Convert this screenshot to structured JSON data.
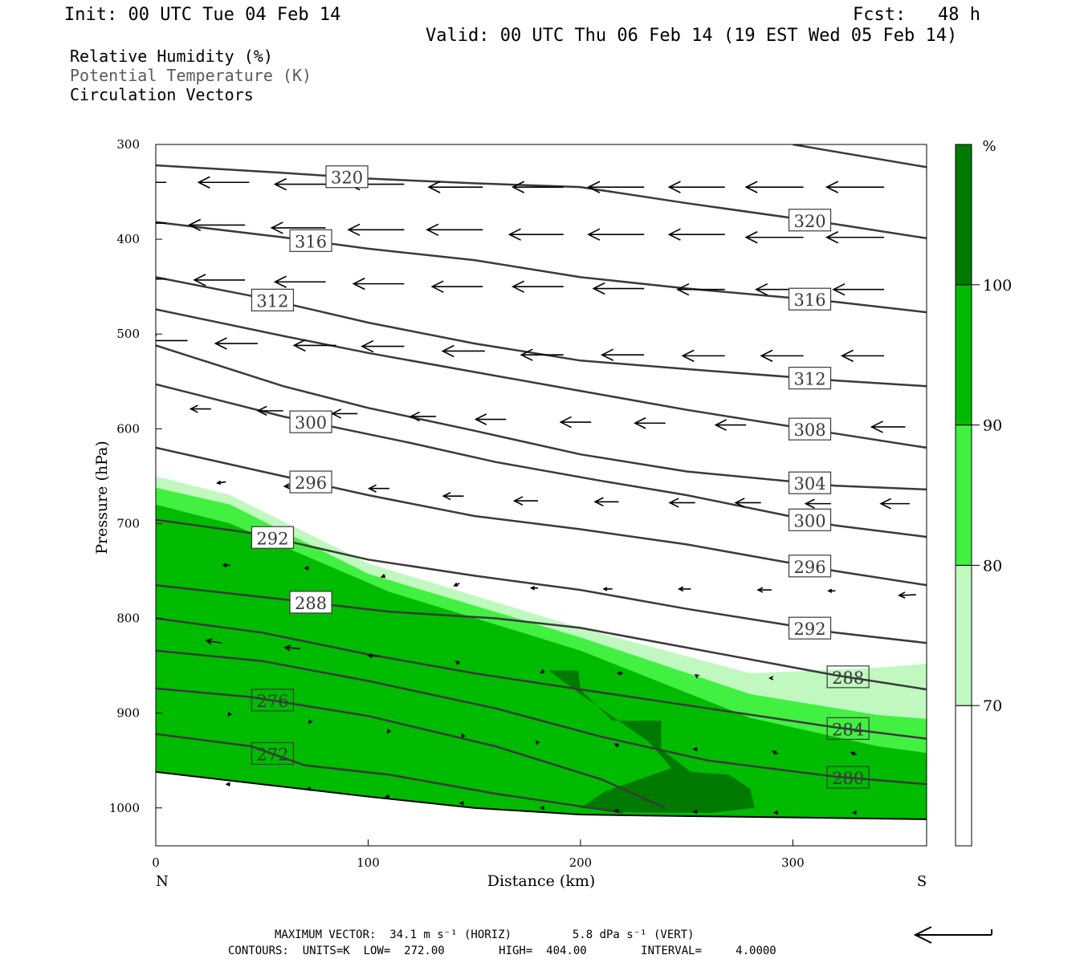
{
  "header": {
    "init": "Init: 00 UTC Tue 04 Feb 14",
    "fcst": "Fcst:   48 h",
    "valid": "Valid: 00 UTC Thu 06 Feb 14 (19 EST Wed 05 Feb 14)"
  },
  "fields": [
    {
      "label": "Relative Humidity (%)"
    },
    {
      "label": "Potential Temperature (K)"
    },
    {
      "label": "Circulation Vectors"
    }
  ],
  "colorbar": {
    "unit": "%",
    "levels": [
      70,
      80,
      90,
      100
    ],
    "colors": [
      "#ffffff",
      "#c0f8c0",
      "#42f042",
      "#00bb00",
      "#007a00"
    ]
  },
  "footer": {
    "max_vector": "MAXIMUM VECTOR:  34.1 m s⁻¹ (HORIZ)         5.8 dPa s⁻¹ (VERT)",
    "contours": "CONTOURS:  UNITS=K  LOW=  272.00        HIGH=  404.00        INTERVAL=     4.0000"
  },
  "chart_data": {
    "type": "cross-section",
    "xlabel": "Distance (km)",
    "ylabel": "Pressure (hPa)",
    "xlim": [
      0,
      363
    ],
    "ylim": [
      1040,
      300
    ],
    "x_ticks": [
      0,
      100,
      200,
      300
    ],
    "y_ticks": [
      300,
      400,
      500,
      600,
      700,
      800,
      900,
      1000
    ],
    "x_end_labels": {
      "left": "N",
      "right": "S"
    },
    "rh_fill": [
      {
        "level": 70,
        "color": "#c0f8c0",
        "top": [
          [
            0,
            650
          ],
          [
            35,
            670
          ],
          [
            100,
            742
          ],
          [
            200,
            810
          ],
          [
            280,
            858
          ],
          [
            340,
            852
          ],
          [
            363,
            848
          ]
        ]
      },
      {
        "level": 80,
        "color": "#42f042",
        "top": [
          [
            0,
            662
          ],
          [
            35,
            680
          ],
          [
            100,
            753
          ],
          [
            200,
            820
          ],
          [
            280,
            880
          ],
          [
            340,
            902
          ],
          [
            363,
            906
          ]
        ]
      },
      {
        "level": 90,
        "color": "#00bb00",
        "top": [
          [
            0,
            680
          ],
          [
            35,
            700
          ],
          [
            110,
            772
          ],
          [
            200,
            834
          ],
          [
            280,
            905
          ],
          [
            340,
            935
          ],
          [
            363,
            942
          ]
        ]
      }
    ],
    "rh_core_100": [
      [
        185,
        855
      ],
      [
        199,
        855
      ],
      [
        200,
        875
      ],
      [
        215,
        908
      ],
      [
        238,
        908
      ],
      [
        238,
        938
      ],
      [
        252,
        962
      ],
      [
        270,
        965
      ],
      [
        280,
        980
      ],
      [
        282,
        1000
      ],
      [
        262,
        1005
      ],
      [
        225,
        1005
      ],
      [
        200,
        1000
      ],
      [
        212,
        982
      ],
      [
        243,
        958
      ],
      [
        232,
        930
      ],
      [
        200,
        880
      ]
    ],
    "terrain": [
      [
        0,
        962
      ],
      [
        50,
        975
      ],
      [
        100,
        988
      ],
      [
        150,
        1000
      ],
      [
        200,
        1007
      ],
      [
        230,
        1008
      ],
      [
        300,
        1010
      ],
      [
        363,
        1012
      ]
    ],
    "theta_contours": [
      {
        "value": 272,
        "points": [
          [
            0,
            922
          ],
          [
            45,
            935
          ],
          [
            70,
            955
          ],
          [
            110,
            965
          ],
          [
            160,
            985
          ],
          [
            220,
            1005
          ]
        ]
      },
      {
        "value": 276,
        "points": [
          [
            0,
            874
          ],
          [
            45,
            883
          ],
          [
            100,
            903
          ],
          [
            160,
            935
          ],
          [
            210,
            970
          ],
          [
            240,
            1000
          ]
        ]
      },
      {
        "value": 280,
        "points": [
          [
            0,
            834
          ],
          [
            50,
            845
          ],
          [
            100,
            866
          ],
          [
            160,
            895
          ],
          [
            210,
            925
          ],
          [
            260,
            950
          ],
          [
            320,
            967
          ],
          [
            363,
            975
          ]
        ]
      },
      {
        "value": 284,
        "points": [
          [
            0,
            800
          ],
          [
            50,
            815
          ],
          [
            100,
            838
          ],
          [
            150,
            858
          ],
          [
            200,
            875
          ],
          [
            260,
            895
          ],
          [
            320,
            915
          ],
          [
            363,
            927
          ]
        ]
      },
      {
        "value": 288,
        "points": [
          [
            0,
            765
          ],
          [
            60,
            780
          ],
          [
            110,
            793
          ],
          [
            160,
            800
          ],
          [
            200,
            810
          ],
          [
            260,
            835
          ],
          [
            320,
            860
          ],
          [
            363,
            875
          ]
        ]
      },
      {
        "value": 292,
        "points": [
          [
            0,
            696
          ],
          [
            45,
            710
          ],
          [
            100,
            738
          ],
          [
            150,
            755
          ],
          [
            200,
            770
          ],
          [
            250,
            790
          ],
          [
            320,
            815
          ],
          [
            363,
            826
          ]
        ]
      },
      {
        "value": 296,
        "points": [
          [
            0,
            620
          ],
          [
            50,
            645
          ],
          [
            100,
            670
          ],
          [
            150,
            692
          ],
          [
            200,
            706
          ],
          [
            250,
            722
          ],
          [
            320,
            750
          ],
          [
            363,
            765
          ]
        ]
      },
      {
        "value": 300,
        "points": [
          [
            0,
            553
          ],
          [
            60,
            587
          ],
          [
            120,
            615
          ],
          [
            160,
            635
          ],
          [
            210,
            655
          ],
          [
            250,
            670
          ],
          [
            320,
            702
          ],
          [
            363,
            714
          ]
        ]
      },
      {
        "value": 304,
        "points": [
          [
            0,
            512
          ],
          [
            60,
            555
          ],
          [
            100,
            578
          ],
          [
            150,
            602
          ],
          [
            200,
            627
          ],
          [
            250,
            645
          ],
          [
            320,
            660
          ],
          [
            363,
            664
          ]
        ]
      },
      {
        "value": 308,
        "points": [
          [
            0,
            474
          ],
          [
            60,
            502
          ],
          [
            100,
            520
          ],
          [
            150,
            540
          ],
          [
            200,
            560
          ],
          [
            250,
            580
          ],
          [
            320,
            605
          ],
          [
            363,
            620
          ]
        ]
      },
      {
        "value": 312,
        "points": [
          [
            0,
            440
          ],
          [
            50,
            462
          ],
          [
            100,
            488
          ],
          [
            150,
            510
          ],
          [
            200,
            528
          ],
          [
            250,
            537
          ],
          [
            320,
            549
          ],
          [
            363,
            555
          ]
        ]
      },
      {
        "value": 316,
        "points": [
          [
            0,
            382
          ],
          [
            60,
            398
          ],
          [
            100,
            410
          ],
          [
            150,
            422
          ],
          [
            200,
            440
          ],
          [
            250,
            452
          ],
          [
            320,
            466
          ],
          [
            363,
            477
          ]
        ]
      },
      {
        "value": 320,
        "points": [
          [
            0,
            322
          ],
          [
            60,
            330
          ],
          [
            100,
            336
          ],
          [
            150,
            341
          ],
          [
            200,
            345
          ],
          [
            250,
            362
          ],
          [
            320,
            384
          ],
          [
            363,
            399
          ]
        ]
      },
      {
        "value": 324,
        "points": [
          [
            300,
            300
          ],
          [
            363,
            324
          ]
        ]
      }
    ],
    "vectors": [
      {
        "x": 5,
        "p": 340,
        "u": -33,
        "w": 0
      },
      {
        "x": 44,
        "p": 340,
        "u": -30,
        "w": 0
      },
      {
        "x": 80,
        "p": 342,
        "u": -30,
        "w": 0
      },
      {
        "x": 117,
        "p": 342,
        "u": -33,
        "w": 0
      },
      {
        "x": 154,
        "p": 345,
        "u": -32,
        "w": 0
      },
      {
        "x": 192,
        "p": 345,
        "u": -30,
        "w": 0
      },
      {
        "x": 230,
        "p": 345,
        "u": -33,
        "w": 0
      },
      {
        "x": 268,
        "p": 345,
        "u": -33,
        "w": 0
      },
      {
        "x": 305,
        "p": 345,
        "u": -34,
        "w": 0
      },
      {
        "x": 343,
        "p": 345,
        "u": -34,
        "w": 0
      },
      {
        "x": 5,
        "p": 383,
        "u": -32,
        "w": 0
      },
      {
        "x": 42,
        "p": 385,
        "u": -33,
        "w": 0
      },
      {
        "x": 80,
        "p": 388,
        "u": -32,
        "w": 0
      },
      {
        "x": 117,
        "p": 390,
        "u": -33,
        "w": 0
      },
      {
        "x": 154,
        "p": 390,
        "u": -33,
        "w": 0
      },
      {
        "x": 192,
        "p": 395,
        "u": -32,
        "w": 0
      },
      {
        "x": 230,
        "p": 395,
        "u": -33,
        "w": 0
      },
      {
        "x": 268,
        "p": 395,
        "u": -33,
        "w": 0
      },
      {
        "x": 305,
        "p": 398,
        "u": -34,
        "w": 0
      },
      {
        "x": 343,
        "p": 398,
        "u": -34,
        "w": 0
      },
      {
        "x": 5,
        "p": 442,
        "u": -30,
        "w": 0
      },
      {
        "x": 42,
        "p": 443,
        "u": -30,
        "w": 0
      },
      {
        "x": 80,
        "p": 445,
        "u": -30,
        "w": 0
      },
      {
        "x": 117,
        "p": 447,
        "u": -30,
        "w": 0
      },
      {
        "x": 154,
        "p": 450,
        "u": -30,
        "w": 0
      },
      {
        "x": 192,
        "p": 450,
        "u": -30,
        "w": 0
      },
      {
        "x": 230,
        "p": 452,
        "u": -30,
        "w": 0
      },
      {
        "x": 268,
        "p": 453,
        "u": -28,
        "w": 0
      },
      {
        "x": 305,
        "p": 453,
        "u": -28,
        "w": 0
      },
      {
        "x": 343,
        "p": 453,
        "u": -30,
        "w": 0
      },
      {
        "x": 15,
        "p": 507,
        "u": -25,
        "w": 0
      },
      {
        "x": 48,
        "p": 510,
        "u": -25,
        "w": 0
      },
      {
        "x": 85,
        "p": 512,
        "u": -25,
        "w": 0
      },
      {
        "x": 117,
        "p": 513,
        "u": -25,
        "w": 0
      },
      {
        "x": 155,
        "p": 518,
        "u": -25,
        "w": 0
      },
      {
        "x": 192,
        "p": 522,
        "u": -25,
        "w": 0
      },
      {
        "x": 230,
        "p": 522,
        "u": -25,
        "w": 0
      },
      {
        "x": 268,
        "p": 523,
        "u": -25,
        "w": 0
      },
      {
        "x": 305,
        "p": 523,
        "u": -25,
        "w": 0
      },
      {
        "x": 343,
        "p": 523,
        "u": -25,
        "w": 0
      },
      {
        "x": 26,
        "p": 579,
        "u": -12,
        "w": 0
      },
      {
        "x": 60,
        "p": 581,
        "u": -15,
        "w": 0
      },
      {
        "x": 95,
        "p": 584,
        "u": -15,
        "w": 0
      },
      {
        "x": 132,
        "p": 587,
        "u": -15,
        "w": 0
      },
      {
        "x": 165,
        "p": 590,
        "u": -18,
        "w": 0
      },
      {
        "x": 205,
        "p": 593,
        "u": -18,
        "w": 0
      },
      {
        "x": 240,
        "p": 594,
        "u": -18,
        "w": 0
      },
      {
        "x": 278,
        "p": 596,
        "u": -18,
        "w": 0
      },
      {
        "x": 315,
        "p": 597,
        "u": -20,
        "w": 0
      },
      {
        "x": 353,
        "p": 598,
        "u": -20,
        "w": 0
      },
      {
        "x": 33,
        "p": 656,
        "u": -5,
        "w": 0.5
      },
      {
        "x": 67,
        "p": 660,
        "u": -8,
        "w": 0.3
      },
      {
        "x": 110,
        "p": 663,
        "u": -12,
        "w": 0
      },
      {
        "x": 145,
        "p": 671,
        "u": -12,
        "w": 0
      },
      {
        "x": 180,
        "p": 676,
        "u": -14,
        "w": 0
      },
      {
        "x": 218,
        "p": 677,
        "u": -14,
        "w": 0
      },
      {
        "x": 254,
        "p": 678,
        "u": -15,
        "w": 0
      },
      {
        "x": 285,
        "p": 678,
        "u": -15,
        "w": 0
      },
      {
        "x": 318,
        "p": 679,
        "u": -15,
        "w": 0
      },
      {
        "x": 355,
        "p": 679,
        "u": -17,
        "w": 0
      },
      {
        "x": 35,
        "p": 744,
        "u": -4,
        "w": 0
      },
      {
        "x": 72,
        "p": 747,
        "u": -2,
        "w": 0
      },
      {
        "x": 108,
        "p": 755,
        "u": -2,
        "w": 0.5
      },
      {
        "x": 143,
        "p": 763,
        "u": -3,
        "w": 1.0
      },
      {
        "x": 180,
        "p": 768,
        "u": -4,
        "w": 0
      },
      {
        "x": 215,
        "p": 769,
        "u": -5,
        "w": 0
      },
      {
        "x": 252,
        "p": 769,
        "u": -7,
        "w": 0
      },
      {
        "x": 290,
        "p": 770,
        "u": -8,
        "w": 0
      },
      {
        "x": 320,
        "p": 771,
        "u": -4,
        "w": 0
      },
      {
        "x": 358,
        "p": 775,
        "u": -10,
        "w": 0.3
      },
      {
        "x": 31,
        "p": 826,
        "u": -9,
        "w": -1.0
      },
      {
        "x": 68,
        "p": 832,
        "u": -9,
        "w": -0.5
      },
      {
        "x": 105,
        "p": 840,
        "u": -6,
        "w": -0.3
      },
      {
        "x": 143,
        "p": 848,
        "u": -2,
        "w": -1.0
      },
      {
        "x": 183,
        "p": 855,
        "u": -2,
        "w": 1.0
      },
      {
        "x": 220,
        "p": 858,
        "u": -3,
        "w": 0
      },
      {
        "x": 255,
        "p": 861,
        "u": -1,
        "w": -0.5
      },
      {
        "x": 290,
        "p": 863,
        "u": -1,
        "w": 0
      },
      {
        "x": 35,
        "p": 900,
        "u": -1,
        "w": 1.0
      },
      {
        "x": 73,
        "p": 908,
        "u": -1,
        "w": 1.0
      },
      {
        "x": 110,
        "p": 918,
        "u": -1,
        "w": 1.0
      },
      {
        "x": 145,
        "p": 925,
        "u": -1,
        "w": -1.0
      },
      {
        "x": 180,
        "p": 932,
        "u": -1,
        "w": -1.0
      },
      {
        "x": 218,
        "p": 935,
        "u": -2,
        "w": -1.0
      },
      {
        "x": 255,
        "p": 938,
        "u": -2,
        "w": 0
      },
      {
        "x": 293,
        "p": 943,
        "u": -3,
        "w": -1.0
      },
      {
        "x": 330,
        "p": 944,
        "u": -3,
        "w": -1.0
      },
      {
        "x": 35,
        "p": 975,
        "u": -2,
        "w": 0
      },
      {
        "x": 73,
        "p": 980,
        "u": -2,
        "w": 0
      },
      {
        "x": 110,
        "p": 988,
        "u": -2,
        "w": 0
      },
      {
        "x": 145,
        "p": 995,
        "u": -2,
        "w": 0
      },
      {
        "x": 183,
        "p": 1000,
        "u": -2,
        "w": 0
      },
      {
        "x": 218,
        "p": 1003,
        "u": -2,
        "w": 0
      },
      {
        "x": 255,
        "p": 1004,
        "u": -2,
        "w": 0
      },
      {
        "x": 293,
        "p": 1005,
        "u": -2,
        "w": 0
      },
      {
        "x": 330,
        "p": 1005,
        "u": -2,
        "w": 0
      }
    ]
  }
}
